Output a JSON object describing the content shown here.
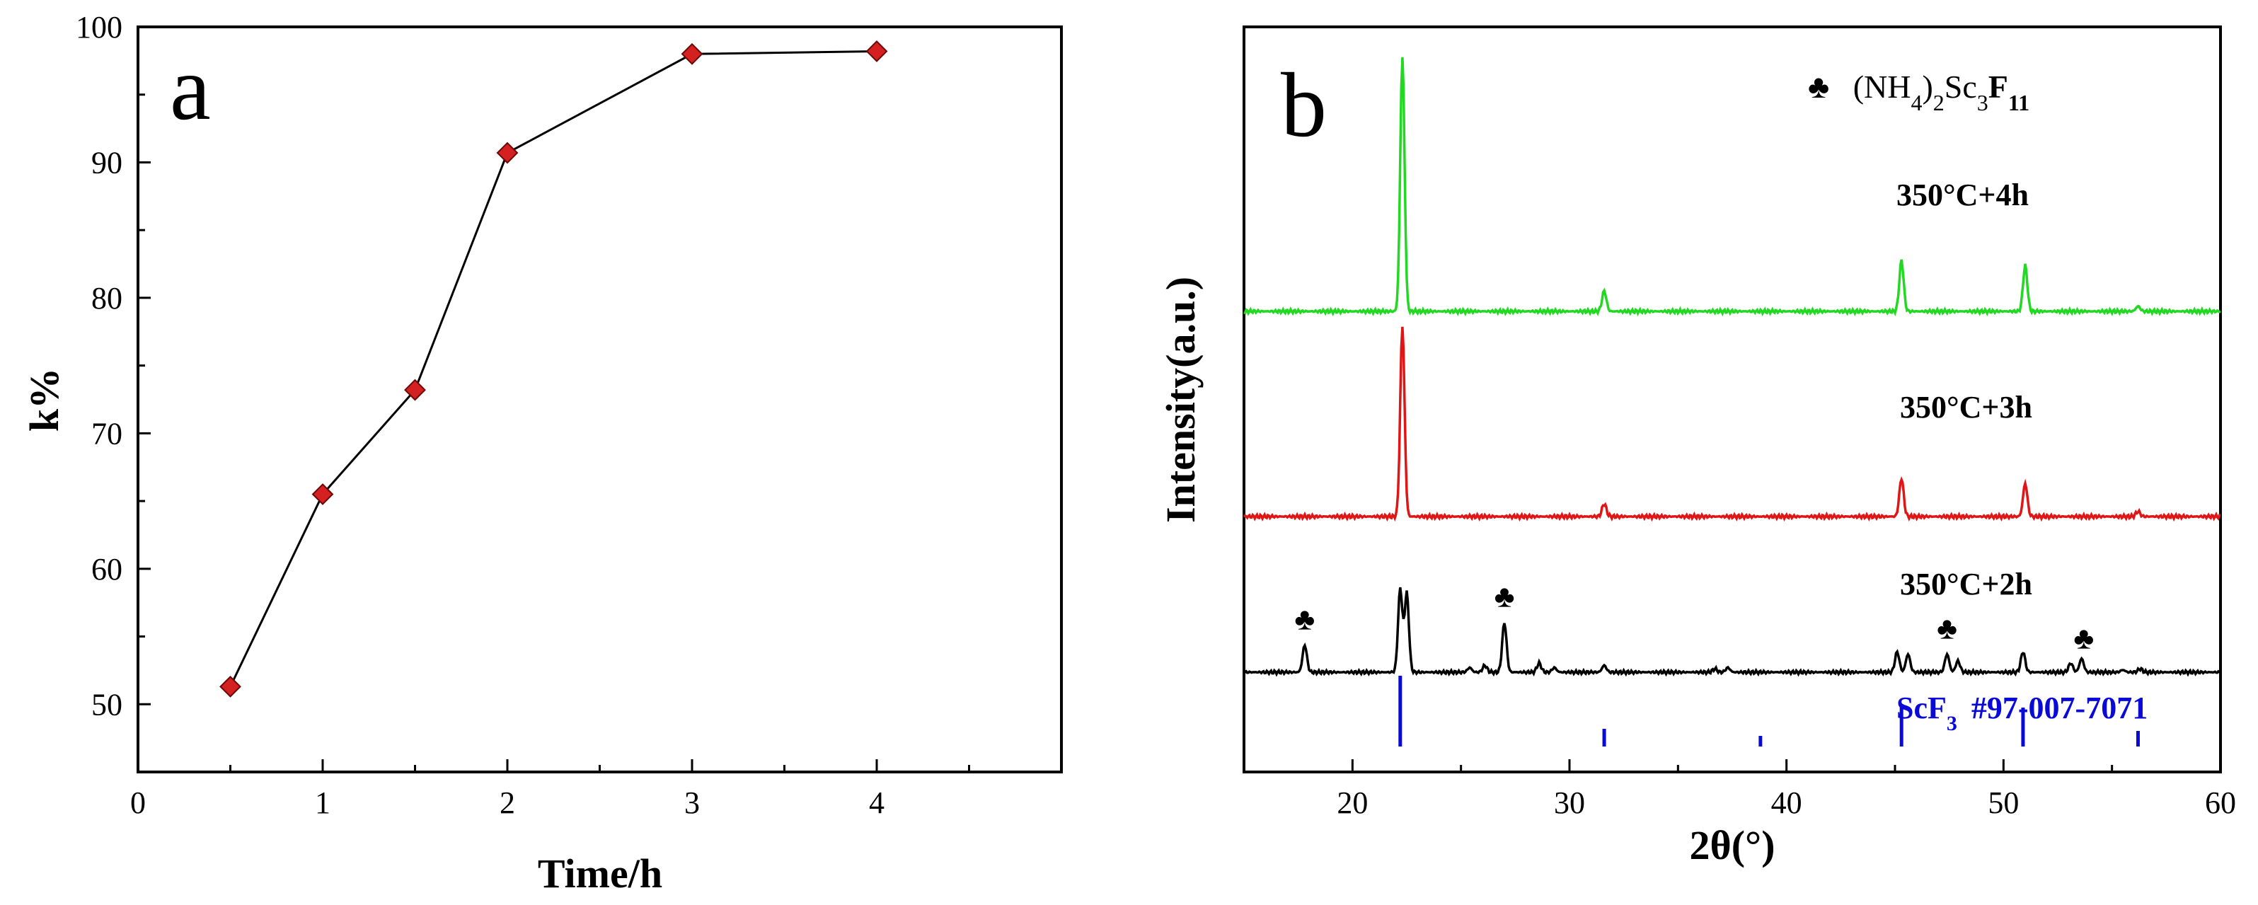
{
  "chart_data": [
    {
      "panel": "a",
      "type": "line",
      "x": [
        0.5,
        1,
        1.5,
        2,
        3,
        4
      ],
      "y": [
        51.3,
        65.5,
        73.2,
        90.7,
        98.0,
        98.2
      ],
      "xlabel": "Time/h",
      "ylabel": "k%",
      "xlim": [
        0,
        5
      ],
      "ylim": [
        45,
        100
      ],
      "xticks": [
        0,
        1,
        2,
        3,
        4
      ],
      "yticks": [
        50,
        60,
        70,
        80,
        90,
        100
      ],
      "marker_color": "#d42020",
      "line_color": "#000000"
    },
    {
      "panel": "b",
      "type": "line",
      "xlabel": "2θ(°)",
      "ylabel": "Intensity(a.u.)",
      "xlim": [
        15,
        60
      ],
      "xticks": [
        20,
        30,
        40,
        50,
        60
      ],
      "legend": {
        "symbol": "♣",
        "prefix": "(NH",
        "sub1": "4",
        "mid1": ")",
        "sub2": "2",
        "mid2": "Sc",
        "sub3": "3",
        "mid3": "F",
        "sub4": "11"
      },
      "series": [
        {
          "name": "350°C+4h",
          "color": "#22d822",
          "peaks": [
            [
              22.3,
              1.0
            ],
            [
              31.6,
              0.08
            ],
            [
              45.3,
              0.2
            ],
            [
              51.0,
              0.18
            ],
            [
              56.2,
              0.02
            ]
          ]
        },
        {
          "name": "350°C+3h",
          "color": "#e01515",
          "peaks": [
            [
              22.3,
              0.75
            ],
            [
              31.6,
              0.05
            ],
            [
              45.3,
              0.15
            ],
            [
              51.0,
              0.13
            ],
            [
              56.2,
              0.02
            ]
          ]
        },
        {
          "name": "350°C+2h",
          "color": "#000000",
          "peaks": [
            [
              17.8,
              0.12
            ],
            [
              22.2,
              0.37
            ],
            [
              22.5,
              0.35
            ],
            [
              25.4,
              0.02
            ],
            [
              26.1,
              0.03
            ],
            [
              27.0,
              0.22
            ],
            [
              28.6,
              0.04
            ],
            [
              29.3,
              0.02
            ],
            [
              31.6,
              0.03
            ],
            [
              36.7,
              0.015
            ],
            [
              37.3,
              0.02
            ],
            [
              45.1,
              0.09
            ],
            [
              45.6,
              0.08
            ],
            [
              47.4,
              0.08
            ],
            [
              47.9,
              0.05
            ],
            [
              50.9,
              0.09
            ],
            [
              53.1,
              0.04
            ],
            [
              53.6,
              0.06
            ],
            [
              55.5,
              0.01
            ],
            [
              56.3,
              0.015
            ]
          ],
          "club_markers": [
            17.8,
            27.0,
            47.4,
            53.7
          ]
        }
      ],
      "reference": {
        "name": "ScF",
        "sub": "3",
        "card": "#97-007-7071",
        "color": "#0a0ad8",
        "lines": [
          [
            22.2,
            1.0
          ],
          [
            31.6,
            0.25
          ],
          [
            38.8,
            0.15
          ],
          [
            45.3,
            0.6
          ],
          [
            50.9,
            0.55
          ],
          [
            56.2,
            0.22
          ]
        ]
      }
    }
  ],
  "labels": {
    "panel_a": "a",
    "panel_b": "b"
  }
}
